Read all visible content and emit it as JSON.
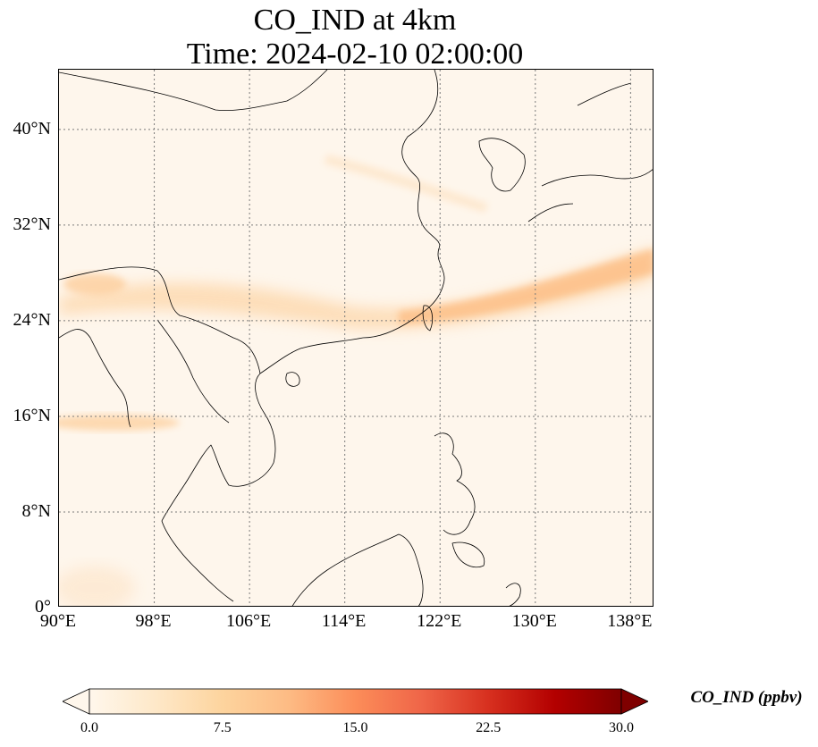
{
  "title": {
    "line1": "CO_IND at 4km",
    "line2": "Time: 2024-02-10 02:00:00"
  },
  "map": {
    "extent_lon": [
      90,
      140
    ],
    "extent_lat": [
      0,
      45
    ],
    "lon_ticks": [
      {
        "value": 90,
        "label": "90°E"
      },
      {
        "value": 98,
        "label": "98°E"
      },
      {
        "value": 106,
        "label": "106°E"
      },
      {
        "value": 114,
        "label": "114°E"
      },
      {
        "value": 122,
        "label": "122°E"
      },
      {
        "value": 130,
        "label": "130°E"
      },
      {
        "value": 138,
        "label": "138°E"
      }
    ],
    "lat_ticks": [
      {
        "value": 0,
        "label": "0°"
      },
      {
        "value": 8,
        "label": "8°N"
      },
      {
        "value": 16,
        "label": "16°N"
      },
      {
        "value": 24,
        "label": "24°N"
      },
      {
        "value": 32,
        "label": "32°N"
      },
      {
        "value": 40,
        "label": "40°N"
      }
    ],
    "gridlines": true,
    "background_color": "#fdf3e6",
    "plume_color": "#fdbe85",
    "coastline_color": "#000000"
  },
  "colorbar": {
    "label": "CO_IND (ppbv)",
    "min": 0,
    "max": 30,
    "extend": "both",
    "colormap": "OrRd",
    "stops": [
      "#fff7ec",
      "#fee8c8",
      "#fdd49e",
      "#fdbb84",
      "#fc8d59",
      "#ef6548",
      "#d7301f",
      "#b30000",
      "#7f0000"
    ],
    "ticks": [
      {
        "value": 0,
        "label": "0.0"
      },
      {
        "value": 7.5,
        "label": "7.5"
      },
      {
        "value": 15,
        "label": "15.0"
      },
      {
        "value": 22.5,
        "label": "22.5"
      },
      {
        "value": 30,
        "label": "30.0"
      }
    ]
  }
}
